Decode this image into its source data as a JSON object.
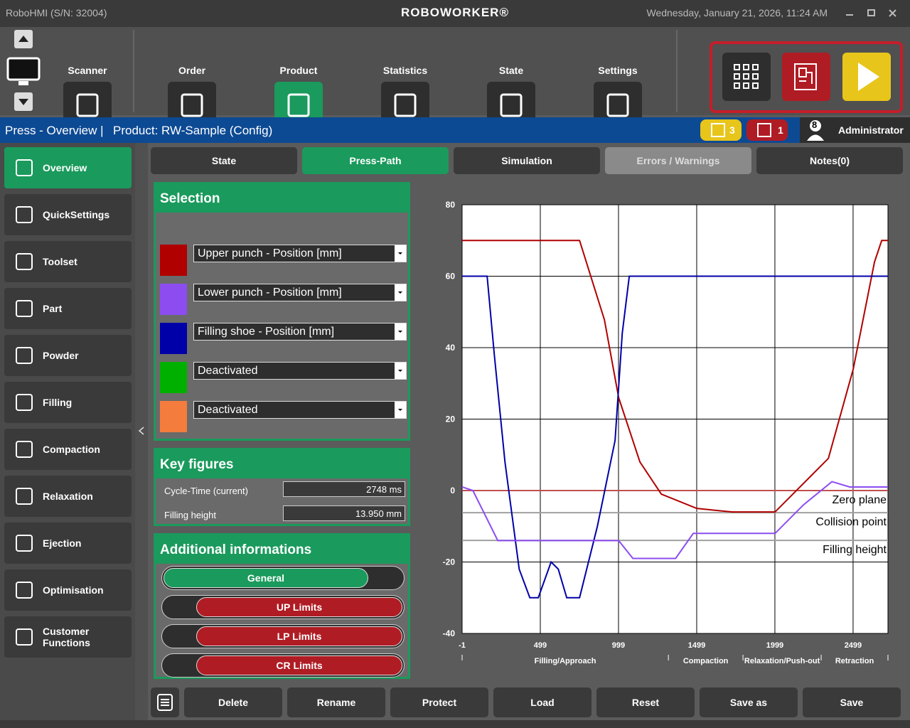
{
  "titlebar": {
    "app": "RoboHMI (S/N: 32004)",
    "brand": "ROBOWORKER®",
    "datetime": "Wednesday, January 21, 2026, 11:24 AM"
  },
  "toolbar": {
    "items": [
      "Scanner",
      "Order",
      "Product",
      "Statistics",
      "State",
      "Settings"
    ],
    "active": 2
  },
  "header": {
    "location": "Press - Overview |",
    "product": "Product: RW-Sample (Config)",
    "warnings": "3",
    "errors": "1",
    "user_level": "8",
    "user": "Administrator"
  },
  "sidebar": {
    "items": [
      "Overview",
      "QuickSettings",
      "Toolset",
      "Part",
      "Powder",
      "Filling",
      "Compaction",
      "Relaxation",
      "Ejection",
      "Optimisation",
      "Customer Functions"
    ],
    "active": 0
  },
  "tabs": {
    "items": [
      "State",
      "Press-Path",
      "Simulation",
      "Errors / Warnings",
      "Notes(0)"
    ],
    "active": 1,
    "disabled": 3
  },
  "selection": {
    "title": "Selection",
    "rows": [
      {
        "color": "#b00000",
        "label": "Upper punch - Position [mm]"
      },
      {
        "color": "#8c4cf0",
        "label": "Lower punch - Position [mm]"
      },
      {
        "color": "#0000a8",
        "label": "Filling shoe - Position [mm]"
      },
      {
        "color": "#00b000",
        "label": "Deactivated"
      },
      {
        "color": "#f47c3c",
        "label": "Deactivated"
      }
    ]
  },
  "key_figures": {
    "title": "Key figures",
    "rows": [
      {
        "label": "Cycle-Time (current)",
        "value": "2748 ms"
      },
      {
        "label": "Filling height",
        "value": "13.950 mm"
      }
    ]
  },
  "additional": {
    "title": "Additional informations",
    "buttons": [
      {
        "label": "General",
        "color": "#1a9a5c",
        "side": "left"
      },
      {
        "label": "UP Limits",
        "color": "#b01c24",
        "side": "right"
      },
      {
        "label": "LP Limits",
        "color": "#b01c24",
        "side": "right"
      },
      {
        "label": "CR Limits",
        "color": "#b01c24",
        "side": "right"
      }
    ]
  },
  "actions": [
    "Delete",
    "Rename",
    "Protect",
    "Load",
    "Reset",
    "Save as",
    "Save"
  ],
  "chart": {
    "type": "line",
    "xlim": [
      -1,
      2722
    ],
    "xticks": [
      -1,
      499,
      999,
      1499,
      1999,
      2499
    ],
    "ylim": [
      -40,
      80
    ],
    "yticks": [
      -40,
      -20,
      0,
      20,
      40,
      60,
      80
    ],
    "grid": true,
    "phases": [
      {
        "label": "Filling/Approach",
        "start": -1,
        "end": 1318
      },
      {
        "label": "Compaction",
        "start": 1318,
        "end": 1795
      },
      {
        "label": "Relaxation/Push-out",
        "start": 1795,
        "end": 2295
      },
      {
        "label": "Retraction",
        "start": 2295,
        "end": 2722
      }
    ],
    "references": [
      {
        "label": "Zero plane",
        "value": 0,
        "color": "#c05050"
      },
      {
        "label": "Collision point",
        "value": -6.2,
        "color": "#a0a0a0"
      },
      {
        "label": "Filling height",
        "value": -13.95,
        "color": "#a0a0a0"
      }
    ],
    "series": [
      {
        "name": "Upper punch",
        "color": "#b00000",
        "x": [
          -1,
          750,
          909,
          1000,
          1136,
          1273,
          1500,
          1727,
          2000,
          2182,
          2341,
          2500,
          2636,
          2682,
          2722
        ],
        "values": [
          70,
          70,
          47.8,
          26,
          8,
          -1,
          -5,
          -6,
          -6,
          2,
          9,
          34,
          64,
          70,
          70
        ]
      },
      {
        "name": "Filling shoe",
        "color": "#0000a8",
        "x": [
          -1,
          159,
          205,
          273,
          364,
          432,
          486,
          568,
          614,
          668,
          750,
          864,
          977,
          1023,
          1068,
          2722
        ],
        "values": [
          60,
          60,
          38,
          8,
          -22,
          -30,
          -30,
          -20,
          -22,
          -30,
          -30,
          -10,
          14,
          44,
          60,
          60
        ]
      },
      {
        "name": "Lower punch",
        "color": "#8c4cf0",
        "x": [
          -1,
          68,
          159,
          227,
          1000,
          1091,
          1364,
          1477,
          2000,
          2182,
          2364,
          2477,
          2722
        ],
        "values": [
          1,
          0,
          -8,
          -14,
          -14,
          -19,
          -19,
          -12,
          -12,
          -4,
          2.5,
          1,
          1
        ]
      }
    ]
  }
}
